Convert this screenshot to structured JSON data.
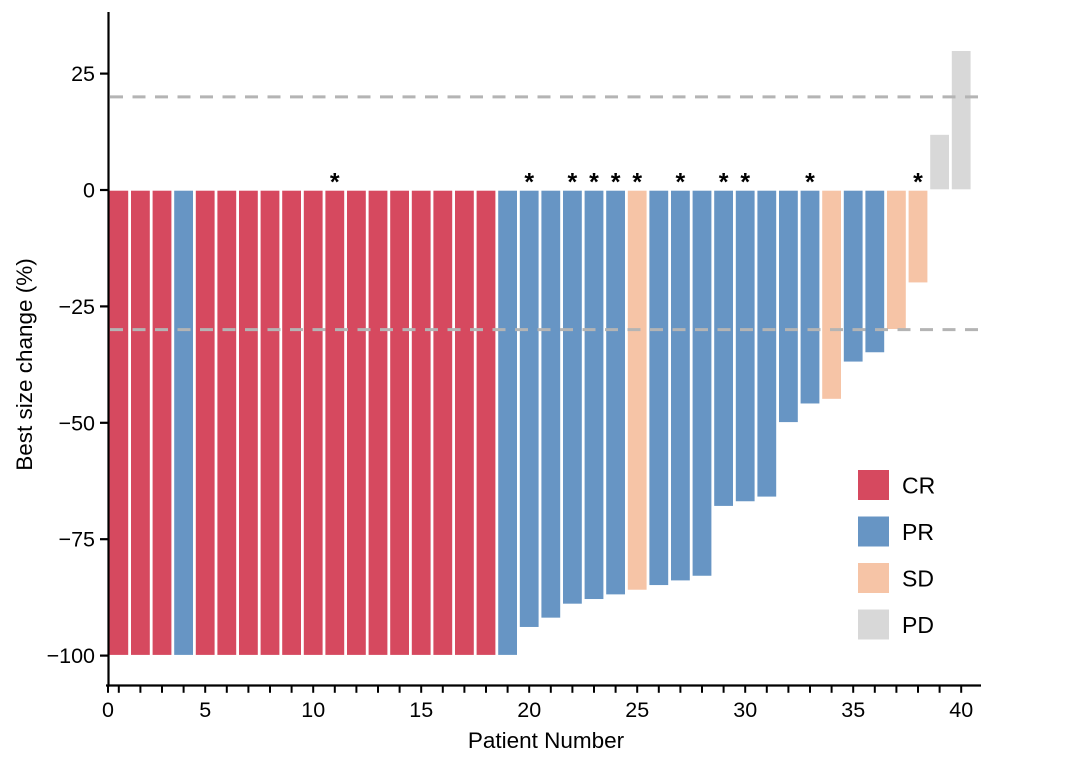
{
  "chart_data": {
    "type": "bar",
    "subtype": "waterfall",
    "title": "",
    "xlabel": "Patient Number",
    "ylabel": "Best size change (%)",
    "ylim": [
      -100,
      30
    ],
    "xlim": [
      0,
      40
    ],
    "grid": false,
    "legend_position": "right-inside",
    "star_symbol": "*",
    "ref_line_color": "#b4b4b4",
    "axis_color": "#000000",
    "bar_outline_color": "#ffffff",
    "reference_lines": [
      {
        "value": 20,
        "style": "dashed"
      },
      {
        "value": -30,
        "style": "dashed"
      }
    ],
    "yticks": [
      {
        "value": 25,
        "label": "25"
      },
      {
        "value": 0,
        "label": "0"
      },
      {
        "value": -25,
        "label": "−25"
      },
      {
        "value": -50,
        "label": "−50"
      },
      {
        "value": -75,
        "label": "−75"
      },
      {
        "value": -100,
        "label": "−100"
      }
    ],
    "xticks": [
      {
        "value": 0,
        "label": "0"
      },
      {
        "value": 5,
        "label": "5"
      },
      {
        "value": 10,
        "label": "10"
      },
      {
        "value": 15,
        "label": "15"
      },
      {
        "value": 20,
        "label": "20"
      },
      {
        "value": 25,
        "label": "25"
      },
      {
        "value": 30,
        "label": "30"
      },
      {
        "value": 35,
        "label": "35"
      },
      {
        "value": 40,
        "label": "40"
      }
    ],
    "series_colors": {
      "CR": "#d6495f",
      "PR": "#6795c4",
      "SD": "#f6c4a6",
      "PD": "#d8d8d8"
    },
    "legend": [
      {
        "label": "CR",
        "color": "#d6495f"
      },
      {
        "label": "PR",
        "color": "#6795c4"
      },
      {
        "label": "SD",
        "color": "#f6c4a6"
      },
      {
        "label": "PD",
        "color": "#d8d8d8"
      }
    ],
    "patients": [
      {
        "n": 1,
        "value": -100,
        "response": "CR",
        "star": false
      },
      {
        "n": 2,
        "value": -100,
        "response": "CR",
        "star": false
      },
      {
        "n": 3,
        "value": -100,
        "response": "CR",
        "star": false
      },
      {
        "n": 4,
        "value": -100,
        "response": "PR",
        "star": false
      },
      {
        "n": 5,
        "value": -100,
        "response": "CR",
        "star": false
      },
      {
        "n": 6,
        "value": -100,
        "response": "CR",
        "star": false
      },
      {
        "n": 7,
        "value": -100,
        "response": "CR",
        "star": false
      },
      {
        "n": 8,
        "value": -100,
        "response": "CR",
        "star": false
      },
      {
        "n": 9,
        "value": -100,
        "response": "CR",
        "star": false
      },
      {
        "n": 10,
        "value": -100,
        "response": "CR",
        "star": false
      },
      {
        "n": 11,
        "value": -100,
        "response": "CR",
        "star": true
      },
      {
        "n": 12,
        "value": -100,
        "response": "CR",
        "star": false
      },
      {
        "n": 13,
        "value": -100,
        "response": "CR",
        "star": false
      },
      {
        "n": 14,
        "value": -100,
        "response": "CR",
        "star": false
      },
      {
        "n": 15,
        "value": -100,
        "response": "CR",
        "star": false
      },
      {
        "n": 16,
        "value": -100,
        "response": "CR",
        "star": false
      },
      {
        "n": 17,
        "value": -100,
        "response": "CR",
        "star": false
      },
      {
        "n": 18,
        "value": -100,
        "response": "CR",
        "star": false
      },
      {
        "n": 19,
        "value": -100,
        "response": "PR",
        "star": false
      },
      {
        "n": 20,
        "value": -94,
        "response": "PR",
        "star": true
      },
      {
        "n": 21,
        "value": -92,
        "response": "PR",
        "star": false
      },
      {
        "n": 22,
        "value": -89,
        "response": "PR",
        "star": true
      },
      {
        "n": 23,
        "value": -88,
        "response": "PR",
        "star": true
      },
      {
        "n": 24,
        "value": -87,
        "response": "PR",
        "star": true
      },
      {
        "n": 25,
        "value": -86,
        "response": "SD",
        "star": true
      },
      {
        "n": 26,
        "value": -85,
        "response": "PR",
        "star": false
      },
      {
        "n": 27,
        "value": -84,
        "response": "PR",
        "star": true
      },
      {
        "n": 28,
        "value": -83,
        "response": "PR",
        "star": false
      },
      {
        "n": 29,
        "value": -68,
        "response": "PR",
        "star": true
      },
      {
        "n": 30,
        "value": -67,
        "response": "PR",
        "star": true
      },
      {
        "n": 31,
        "value": -66,
        "response": "PR",
        "star": false
      },
      {
        "n": 32,
        "value": -50,
        "response": "PR",
        "star": false
      },
      {
        "n": 33,
        "value": -46,
        "response": "PR",
        "star": true
      },
      {
        "n": 34,
        "value": -45,
        "response": "SD",
        "star": false
      },
      {
        "n": 35,
        "value": -37,
        "response": "PR",
        "star": false
      },
      {
        "n": 36,
        "value": -35,
        "response": "PR",
        "star": false
      },
      {
        "n": 37,
        "value": -30,
        "response": "SD",
        "star": false
      },
      {
        "n": 38,
        "value": -20,
        "response": "SD",
        "star": true
      },
      {
        "n": 39,
        "value": 12,
        "response": "PD",
        "star": false
      },
      {
        "n": 40,
        "value": 30,
        "response": "PD",
        "star": false
      }
    ]
  }
}
